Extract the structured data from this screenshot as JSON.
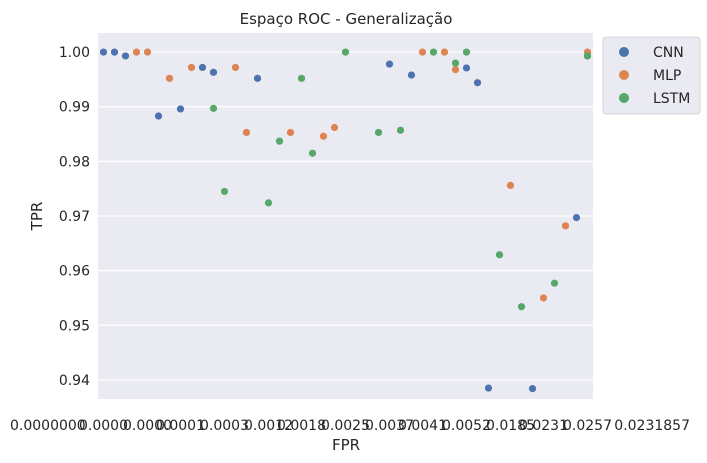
{
  "chart_data": {
    "type": "scatter",
    "title": "Espaço ROC - Generalização",
    "xlabel": "FPR",
    "ylabel": "TPR",
    "ylim": [
      0.9365,
      1.0035
    ],
    "yticks": [
      0.94,
      0.95,
      0.96,
      0.97,
      0.98,
      0.99,
      1.0
    ],
    "ytick_labels": [
      "0.94",
      "0.95",
      "0.96",
      "0.97",
      "0.98",
      "0.99",
      "1.00"
    ],
    "x_categories_count": 45,
    "x_tick_labels_visible": [
      "0.0000",
      "0.0000",
      "0.0001",
      "0.0003",
      "0.0012",
      "0.0018",
      "0.0025",
      "0.0037",
      "0.0041",
      "0.0052",
      "0.0185",
      "0.0231",
      "0.0257"
    ],
    "x_tick_label_left": "0.0000000",
    "x_tick_label_right": "0.0231857",
    "grid": true,
    "legend_position": "outside-upper-right",
    "series": [
      {
        "name": "CNN",
        "color": "#4c72b0",
        "points": [
          {
            "x": 0,
            "y": 1.0
          },
          {
            "x": 1,
            "y": 1.0
          },
          {
            "x": 2,
            "y": 0.9993
          },
          {
            "x": 5,
            "y": 0.9883
          },
          {
            "x": 7,
            "y": 0.9896
          },
          {
            "x": 9,
            "y": 0.9972
          },
          {
            "x": 10,
            "y": 0.9963
          },
          {
            "x": 14,
            "y": 0.9952
          },
          {
            "x": 26,
            "y": 0.9978
          },
          {
            "x": 28,
            "y": 0.9958
          },
          {
            "x": 33,
            "y": 0.9971
          },
          {
            "x": 34,
            "y": 0.9944
          },
          {
            "x": 35,
            "y": 0.9385
          },
          {
            "x": 39,
            "y": 0.9384
          },
          {
            "x": 43,
            "y": 0.9697
          },
          {
            "x": 44,
            "y": 0.9993
          }
        ]
      },
      {
        "name": "MLP",
        "color": "#dd8452",
        "points": [
          {
            "x": 3,
            "y": 1.0
          },
          {
            "x": 4,
            "y": 1.0
          },
          {
            "x": 6,
            "y": 0.9952
          },
          {
            "x": 8,
            "y": 0.9972
          },
          {
            "x": 12,
            "y": 0.9972
          },
          {
            "x": 13,
            "y": 0.9853
          },
          {
            "x": 17,
            "y": 0.9853
          },
          {
            "x": 20,
            "y": 0.9846
          },
          {
            "x": 21,
            "y": 0.9862
          },
          {
            "x": 29,
            "y": 1.0
          },
          {
            "x": 31,
            "y": 1.0
          },
          {
            "x": 32,
            "y": 0.9968
          },
          {
            "x": 37,
            "y": 0.9756
          },
          {
            "x": 40,
            "y": 0.955
          },
          {
            "x": 42,
            "y": 0.9682
          },
          {
            "x": 44,
            "y": 1.0
          }
        ]
      },
      {
        "name": "LSTM",
        "color": "#55a868",
        "points": [
          {
            "x": 10,
            "y": 0.9897
          },
          {
            "x": 11,
            "y": 0.9745
          },
          {
            "x": 15,
            "y": 0.9724
          },
          {
            "x": 16,
            "y": 0.9837
          },
          {
            "x": 18,
            "y": 0.9952
          },
          {
            "x": 19,
            "y": 0.9815
          },
          {
            "x": 22,
            "y": 1.0
          },
          {
            "x": 25,
            "y": 0.9853
          },
          {
            "x": 27,
            "y": 0.9857
          },
          {
            "x": 30,
            "y": 1.0
          },
          {
            "x": 32,
            "y": 0.998
          },
          {
            "x": 33,
            "y": 1.0
          },
          {
            "x": 36,
            "y": 0.9629
          },
          {
            "x": 38,
            "y": 0.9534
          },
          {
            "x": 41,
            "y": 0.9577
          },
          {
            "x": 44,
            "y": 0.9993
          }
        ]
      }
    ]
  }
}
